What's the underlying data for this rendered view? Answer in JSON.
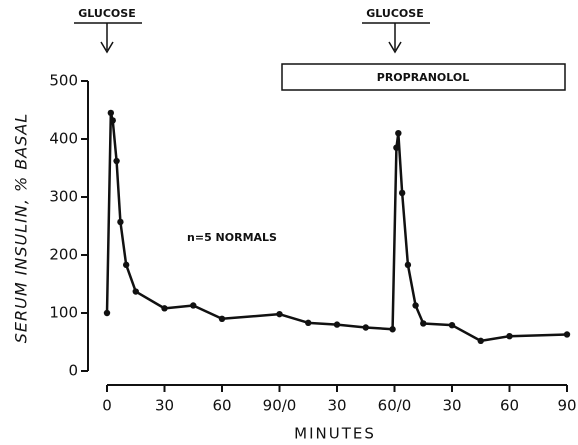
{
  "chart_data": {
    "type": "line",
    "ylabel": "SERUM INSULIN, % BASAL",
    "xlabel": "MINUTES",
    "annotations": [
      "GLUCOSE",
      "GLUCOSE",
      "PROPRANOLOL",
      "n=5 NORMALS"
    ],
    "xlim": [
      0,
      240
    ],
    "ylim": [
      0,
      500
    ],
    "xticks": [
      0,
      30,
      60,
      {
        "value": 90,
        "label": "90/0"
      },
      {
        "value": 120,
        "label": "30"
      },
      {
        "value": 150,
        "label": "60/0"
      },
      {
        "value": 180,
        "label": "30"
      },
      {
        "value": 210,
        "label": "60"
      },
      {
        "value": 240,
        "label": "90"
      }
    ],
    "yticks": [
      0,
      100,
      200,
      300,
      400,
      500
    ],
    "series": [
      {
        "color": "#111111",
        "x": [
          0,
          2,
          3,
          5,
          7,
          10,
          15,
          30,
          45,
          60,
          90,
          105,
          120,
          135,
          149,
          151,
          152,
          154,
          157,
          161,
          165,
          180,
          195,
          210,
          240
        ],
        "values": [
          100,
          445,
          432,
          362,
          257,
          183,
          137,
          108,
          113,
          90,
          98,
          83,
          80,
          75,
          72,
          385,
          410,
          307,
          183,
          113,
          82,
          79,
          52,
          60,
          63
        ]
      }
    ]
  }
}
